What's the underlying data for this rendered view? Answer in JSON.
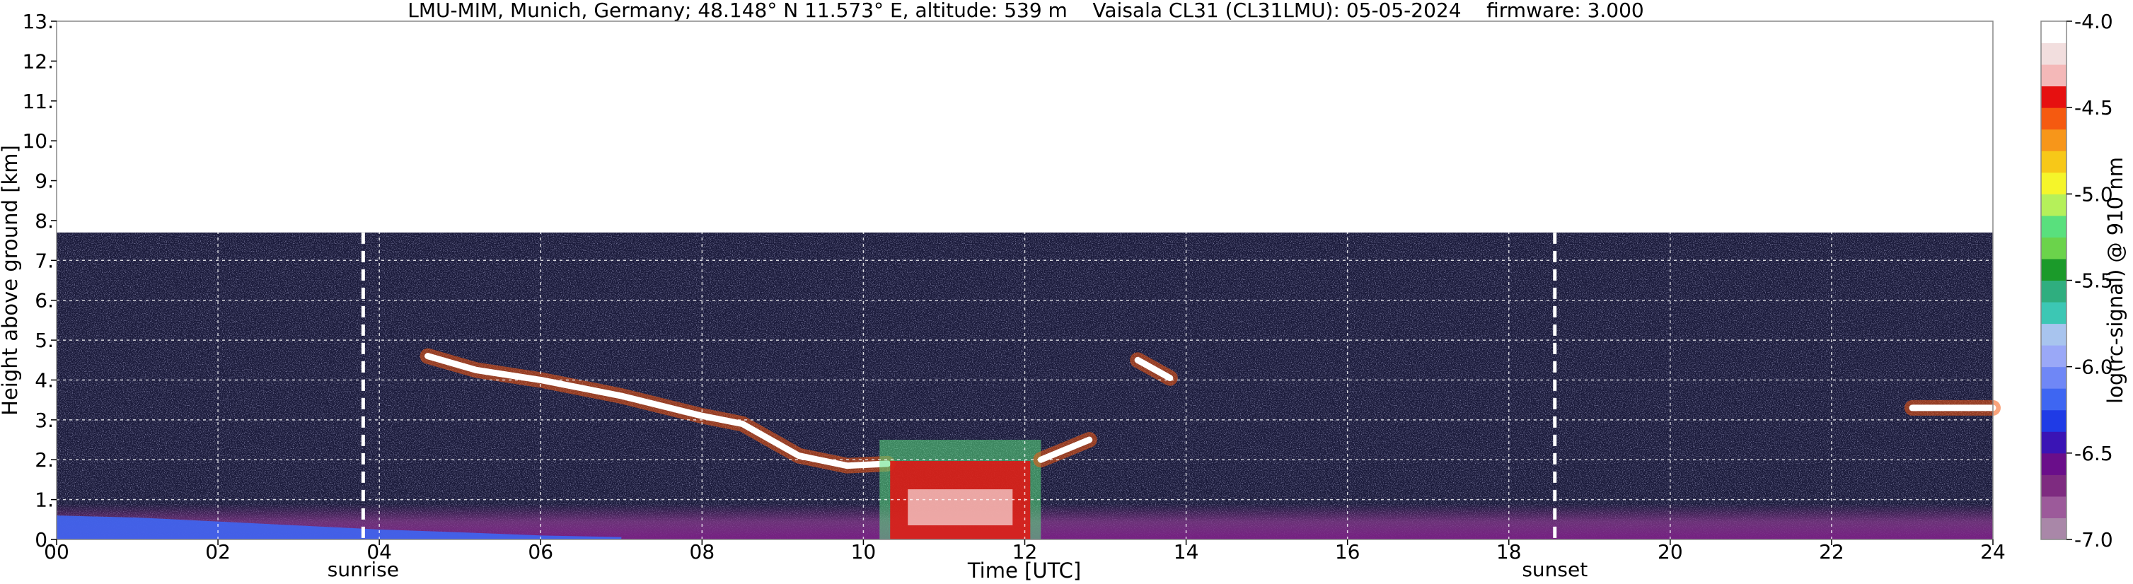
{
  "chart_data": {
    "type": "heatmap",
    "title": "LMU-MIM, Munich, Germany; 48.148° N 11.573° E, altitude: 539 m    Vaisala CL31 (CL31LMU): 05-05-2024    firmware: 3.000",
    "xlabel": "Time [UTC]",
    "ylabel": "Height above ground [km]",
    "xlim": [
      0,
      24
    ],
    "ylim": [
      0,
      13
    ],
    "x_ticks": [
      "00",
      "02",
      "04",
      "06",
      "08",
      "10",
      "12",
      "14",
      "16",
      "18",
      "20",
      "22",
      "24"
    ],
    "y_ticks": [
      "0.",
      "1.",
      "2.",
      "3.",
      "4.",
      "5.",
      "6.",
      "7.",
      "8.",
      "9.",
      "10.",
      "11.",
      "12.",
      "13."
    ],
    "grid": true,
    "colorbar": {
      "label": "log(rc-signal) @ 910 nm",
      "range": [
        -7.0,
        -4.0
      ],
      "ticks": [
        "-4.0",
        "-4.5",
        "-5.0",
        "-5.5",
        "-6.0",
        "-6.5",
        "-7.0"
      ]
    },
    "markers": [
      {
        "label": "sunrise",
        "x": 3.8
      },
      {
        "label": "sunset",
        "x": 18.57
      }
    ],
    "data_top_km": 7.7,
    "features": [
      {
        "name": "mid-level cloud layer",
        "points": [
          [
            4.6,
            4.6
          ],
          [
            5.2,
            4.25
          ],
          [
            6.0,
            4.0
          ],
          [
            7.0,
            3.6
          ],
          [
            8.0,
            3.1
          ],
          [
            8.5,
            2.9
          ],
          [
            9.2,
            2.1
          ],
          [
            9.8,
            1.85
          ],
          [
            10.3,
            1.9
          ]
        ]
      },
      {
        "name": "low cloud and precipitation",
        "x_range": [
          10.2,
          12.2
        ],
        "height_range": [
          0.0,
          2.5
        ]
      },
      {
        "name": "rising cloud layer",
        "points": [
          [
            12.2,
            2.0
          ],
          [
            12.8,
            2.5
          ]
        ]
      },
      {
        "name": "isolated cloud",
        "points": [
          [
            13.4,
            4.5
          ],
          [
            13.8,
            4.05
          ]
        ]
      },
      {
        "name": "evening cloud layer",
        "points": [
          [
            23.0,
            3.3
          ],
          [
            24.0,
            3.3
          ]
        ]
      }
    ]
  },
  "colors": {
    "scale": [
      "#a987a8",
      "#9c5a9a",
      "#7e2b80",
      "#6a0e8a",
      "#3a14b5",
      "#1f3be6",
      "#3e66f2",
      "#6f87f6",
      "#9aa8f7",
      "#a8c4ee",
      "#3cc7b4",
      "#2fae7f",
      "#1b9a2a",
      "#6bd34b",
      "#59e07d",
      "#b5f05a",
      "#f5f52a",
      "#f7c818",
      "#f7961a",
      "#f55a10",
      "#e61010",
      "#f4b8b8",
      "#f2dede",
      "#ffffff"
    ],
    "background": "#1a1a3a"
  }
}
